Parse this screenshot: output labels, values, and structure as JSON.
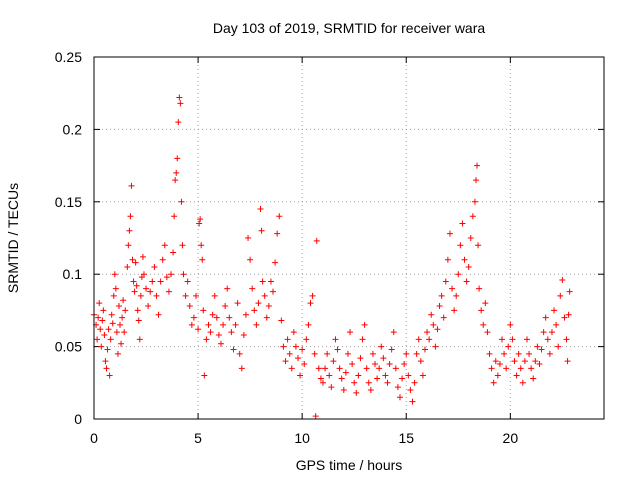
{
  "chart_data": {
    "type": "scatter",
    "title": "Day 103 of 2019, SRMTID for receiver wara",
    "xlabel": "GPS time / hours",
    "ylabel": "SRMTID / TECUs",
    "xlim": [
      0,
      24.5
    ],
    "ylim": [
      0,
      0.25
    ],
    "xticks": [
      0,
      5,
      10,
      15,
      20
    ],
    "xtick_labels": [
      "0",
      "5",
      "10",
      "15",
      "20"
    ],
    "yticks": [
      0,
      0.05,
      0.1,
      0.15,
      0.2,
      0.25
    ],
    "ytick_labels": [
      "0",
      "0.05",
      "0.1",
      "0.15",
      "0.2",
      "0.25"
    ],
    "grid": true,
    "marker": "+",
    "color": "#ff0000",
    "series": [
      {
        "name": "SRMTID",
        "points": [
          [
            0.0,
            0.072
          ],
          [
            0.1,
            0.065
          ],
          [
            0.15,
            0.055
          ],
          [
            0.2,
            0.07
          ],
          [
            0.25,
            0.08
          ],
          [
            0.3,
            0.062
          ],
          [
            0.35,
            0.05
          ],
          [
            0.4,
            0.068
          ],
          [
            0.45,
            0.075
          ],
          [
            0.5,
            0.058
          ],
          [
            0.55,
            0.04
          ],
          [
            0.6,
            0.035
          ],
          [
            0.65,
            0.048
          ],
          [
            0.7,
            0.062
          ],
          [
            0.75,
            0.03
          ],
          [
            0.8,
            0.055
          ],
          [
            0.85,
            0.072
          ],
          [
            0.9,
            0.066
          ],
          [
            0.95,
            0.085
          ],
          [
            1.0,
            0.1
          ],
          [
            1.05,
            0.09
          ],
          [
            1.1,
            0.06
          ],
          [
            1.15,
            0.045
          ],
          [
            1.2,
            0.078
          ],
          [
            1.25,
            0.065
          ],
          [
            1.3,
            0.052
          ],
          [
            1.35,
            0.07
          ],
          [
            1.4,
            0.082
          ],
          [
            1.45,
            0.06
          ],
          [
            1.5,
            0.075
          ],
          [
            1.6,
            0.105
          ],
          [
            1.65,
            0.12
          ],
          [
            1.7,
            0.13
          ],
          [
            1.75,
            0.14
          ],
          [
            1.8,
            0.161
          ],
          [
            1.85,
            0.11
          ],
          [
            1.9,
            0.095
          ],
          [
            1.95,
            0.088
          ],
          [
            2.0,
            0.108
          ],
          [
            2.05,
            0.092
          ],
          [
            2.1,
            0.075
          ],
          [
            2.15,
            0.068
          ],
          [
            2.2,
            0.055
          ],
          [
            2.25,
            0.085
          ],
          [
            2.3,
            0.098
          ],
          [
            2.35,
            0.112
          ],
          [
            2.4,
            0.1
          ],
          [
            2.5,
            0.09
          ],
          [
            2.6,
            0.078
          ],
          [
            2.7,
            0.088
          ],
          [
            2.8,
            0.095
          ],
          [
            2.9,
            0.105
          ],
          [
            3.0,
            0.085
          ],
          [
            3.1,
            0.072
          ],
          [
            3.2,
            0.095
          ],
          [
            3.3,
            0.11
          ],
          [
            3.4,
            0.12
          ],
          [
            3.5,
            0.098
          ],
          [
            3.6,
            0.088
          ],
          [
            3.7,
            0.1
          ],
          [
            3.8,
            0.115
          ],
          [
            3.85,
            0.14
          ],
          [
            3.9,
            0.165
          ],
          [
            3.95,
            0.17
          ],
          [
            4.0,
            0.18
          ],
          [
            4.05,
            0.205
          ],
          [
            4.1,
            0.222
          ],
          [
            4.15,
            0.218
          ],
          [
            4.2,
            0.15
          ],
          [
            4.25,
            0.12
          ],
          [
            4.3,
            0.1
          ],
          [
            4.4,
            0.085
          ],
          [
            4.5,
            0.095
          ],
          [
            4.6,
            0.078
          ],
          [
            4.7,
            0.065
          ],
          [
            4.8,
            0.07
          ],
          [
            4.9,
            0.085
          ],
          [
            5.0,
            0.062
          ],
          [
            5.05,
            0.135
          ],
          [
            5.1,
            0.138
          ],
          [
            5.15,
            0.12
          ],
          [
            5.2,
            0.11
          ],
          [
            5.25,
            0.075
          ],
          [
            5.3,
            0.03
          ],
          [
            5.4,
            0.055
          ],
          [
            5.5,
            0.065
          ],
          [
            5.6,
            0.06
          ],
          [
            5.7,
            0.072
          ],
          [
            5.8,
            0.085
          ],
          [
            5.9,
            0.07
          ],
          [
            6.0,
            0.058
          ],
          [
            6.1,
            0.052
          ],
          [
            6.2,
            0.065
          ],
          [
            6.3,
            0.078
          ],
          [
            6.4,
            0.09
          ],
          [
            6.5,
            0.07
          ],
          [
            6.6,
            0.06
          ],
          [
            6.7,
            0.048
          ],
          [
            6.8,
            0.065
          ],
          [
            6.9,
            0.08
          ],
          [
            7.0,
            0.045
          ],
          [
            7.1,
            0.035
          ],
          [
            7.2,
            0.058
          ],
          [
            7.3,
            0.072
          ],
          [
            7.4,
            0.125
          ],
          [
            7.5,
            0.11
          ],
          [
            7.6,
            0.09
          ],
          [
            7.7,
            0.075
          ],
          [
            7.8,
            0.065
          ],
          [
            7.9,
            0.08
          ],
          [
            8.0,
            0.145
          ],
          [
            8.05,
            0.13
          ],
          [
            8.1,
            0.095
          ],
          [
            8.2,
            0.085
          ],
          [
            8.3,
            0.07
          ],
          [
            8.4,
            0.078
          ],
          [
            8.5,
            0.095
          ],
          [
            8.6,
            0.088
          ],
          [
            8.7,
            0.108
          ],
          [
            8.8,
            0.128
          ],
          [
            8.9,
            0.14
          ],
          [
            9.0,
            0.068
          ],
          [
            9.1,
            0.05
          ],
          [
            9.2,
            0.04
          ],
          [
            9.3,
            0.055
          ],
          [
            9.4,
            0.045
          ],
          [
            9.5,
            0.035
          ],
          [
            9.6,
            0.06
          ],
          [
            9.7,
            0.05
          ],
          [
            9.8,
            0.042
          ],
          [
            9.9,
            0.03
          ],
          [
            10.0,
            0.048
          ],
          [
            10.1,
            0.038
          ],
          [
            10.2,
            0.055
          ],
          [
            10.3,
            0.065
          ],
          [
            10.4,
            0.08
          ],
          [
            10.5,
            0.085
          ],
          [
            10.6,
            0.045
          ],
          [
            10.65,
            0.002
          ],
          [
            10.7,
            0.123
          ],
          [
            10.8,
            0.035
          ],
          [
            10.9,
            0.028
          ],
          [
            11.0,
            0.025
          ],
          [
            11.1,
            0.035
          ],
          [
            11.2,
            0.045
          ],
          [
            11.3,
            0.03
          ],
          [
            11.4,
            0.022
          ],
          [
            11.5,
            0.04
          ],
          [
            11.6,
            0.055
          ],
          [
            11.7,
            0.048
          ],
          [
            11.8,
            0.035
          ],
          [
            11.9,
            0.028
          ],
          [
            12.0,
            0.02
          ],
          [
            12.1,
            0.032
          ],
          [
            12.2,
            0.045
          ],
          [
            12.3,
            0.06
          ],
          [
            12.4,
            0.038
          ],
          [
            12.5,
            0.025
          ],
          [
            12.6,
            0.018
          ],
          [
            12.7,
            0.03
          ],
          [
            12.8,
            0.042
          ],
          [
            12.9,
            0.055
          ],
          [
            13.0,
            0.065
          ],
          [
            13.1,
            0.035
          ],
          [
            13.2,
            0.025
          ],
          [
            13.3,
            0.02
          ],
          [
            13.4,
            0.045
          ],
          [
            13.5,
            0.038
          ],
          [
            13.6,
            0.028
          ],
          [
            13.7,
            0.035
          ],
          [
            13.8,
            0.05
          ],
          [
            13.9,
            0.042
          ],
          [
            14.0,
            0.03
          ],
          [
            14.1,
            0.025
          ],
          [
            14.2,
            0.038
          ],
          [
            14.3,
            0.048
          ],
          [
            14.4,
            0.06
          ],
          [
            14.5,
            0.035
          ],
          [
            14.6,
            0.022
          ],
          [
            14.7,
            0.015
          ],
          [
            14.8,
            0.028
          ],
          [
            14.9,
            0.038
          ],
          [
            15.0,
            0.045
          ],
          [
            15.1,
            0.03
          ],
          [
            15.2,
            0.02
          ],
          [
            15.3,
            0.012
          ],
          [
            15.4,
            0.025
          ],
          [
            15.5,
            0.045
          ],
          [
            15.6,
            0.055
          ],
          [
            15.7,
            0.04
          ],
          [
            15.8,
            0.03
          ],
          [
            15.9,
            0.048
          ],
          [
            16.0,
            0.06
          ],
          [
            16.1,
            0.055
          ],
          [
            16.2,
            0.072
          ],
          [
            16.3,
            0.065
          ],
          [
            16.4,
            0.05
          ],
          [
            16.5,
            0.062
          ],
          [
            16.6,
            0.078
          ],
          [
            16.7,
            0.085
          ],
          [
            16.8,
            0.07
          ],
          [
            16.9,
            0.095
          ],
          [
            17.0,
            0.11
          ],
          [
            17.1,
            0.128
          ],
          [
            17.2,
            0.09
          ],
          [
            17.3,
            0.075
          ],
          [
            17.4,
            0.085
          ],
          [
            17.5,
            0.1
          ],
          [
            17.6,
            0.12
          ],
          [
            17.7,
            0.135
          ],
          [
            17.8,
            0.11
          ],
          [
            17.9,
            0.095
          ],
          [
            18.0,
            0.105
          ],
          [
            18.1,
            0.125
          ],
          [
            18.2,
            0.14
          ],
          [
            18.3,
            0.15
          ],
          [
            18.35,
            0.165
          ],
          [
            18.4,
            0.175
          ],
          [
            18.45,
            0.12
          ],
          [
            18.5,
            0.09
          ],
          [
            18.6,
            0.075
          ],
          [
            18.7,
            0.065
          ],
          [
            18.8,
            0.08
          ],
          [
            18.9,
            0.06
          ],
          [
            19.0,
            0.045
          ],
          [
            19.1,
            0.035
          ],
          [
            19.2,
            0.025
          ],
          [
            19.3,
            0.04
          ],
          [
            19.4,
            0.03
          ],
          [
            19.5,
            0.038
          ],
          [
            19.6,
            0.055
          ],
          [
            19.7,
            0.045
          ],
          [
            19.8,
            0.035
          ],
          [
            19.9,
            0.05
          ],
          [
            20.0,
            0.065
          ],
          [
            20.1,
            0.055
          ],
          [
            20.2,
            0.04
          ],
          [
            20.3,
            0.03
          ],
          [
            20.4,
            0.045
          ],
          [
            20.5,
            0.035
          ],
          [
            20.6,
            0.025
          ],
          [
            20.7,
            0.04
          ],
          [
            20.8,
            0.055
          ],
          [
            20.9,
            0.045
          ],
          [
            21.0,
            0.035
          ],
          [
            21.1,
            0.028
          ],
          [
            21.2,
            0.04
          ],
          [
            21.3,
            0.05
          ],
          [
            21.4,
            0.038
          ],
          [
            21.5,
            0.048
          ],
          [
            21.6,
            0.06
          ],
          [
            21.7,
            0.07
          ],
          [
            21.8,
            0.055
          ],
          [
            21.9,
            0.045
          ],
          [
            22.0,
            0.06
          ],
          [
            22.1,
            0.075
          ],
          [
            22.2,
            0.065
          ],
          [
            22.3,
            0.05
          ],
          [
            22.4,
            0.085
          ],
          [
            22.5,
            0.096
          ],
          [
            22.6,
            0.07
          ],
          [
            22.7,
            0.055
          ],
          [
            22.75,
            0.04
          ],
          [
            22.8,
            0.072
          ],
          [
            22.85,
            0.088
          ]
        ]
      }
    ]
  }
}
